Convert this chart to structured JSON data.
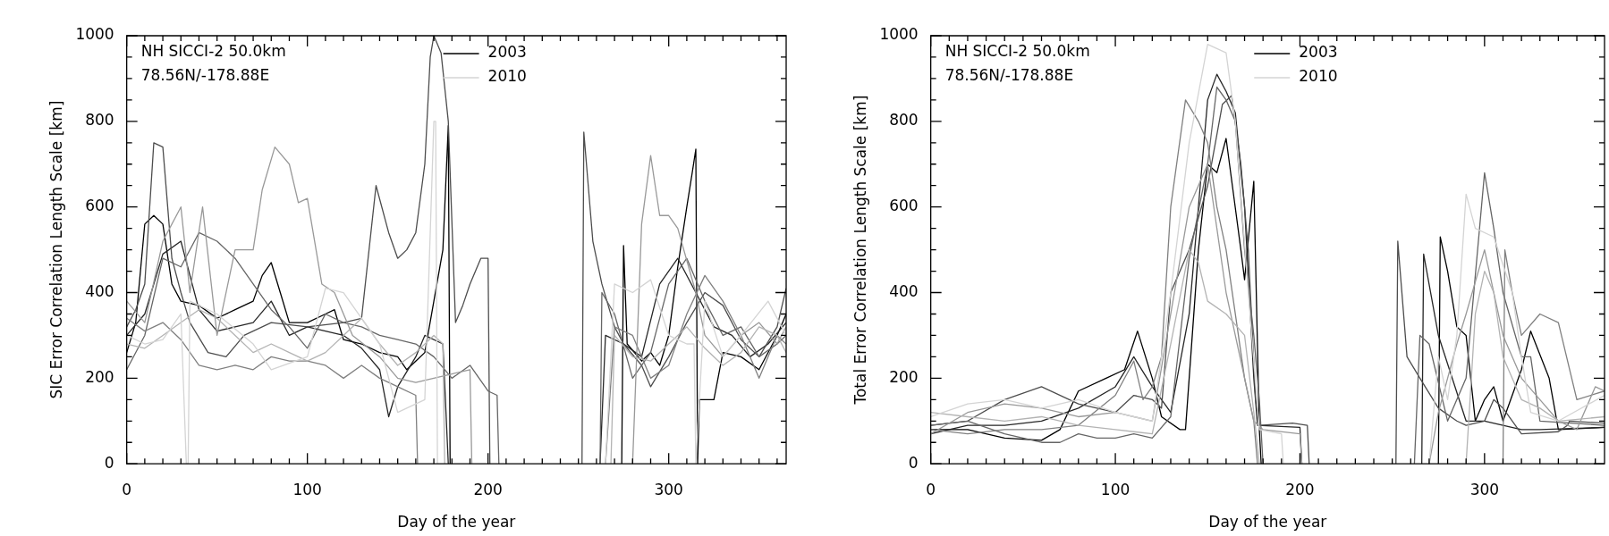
{
  "chart_data": [
    {
      "type": "line",
      "xlabel": "Day of the year",
      "ylabel": "SIC Error Correlation Length Scale [km]",
      "annotations": [
        "NH SICCI-2 50.0km",
        "78.56N/-178.88E"
      ],
      "legend": "top",
      "marker": "none",
      "line_style": "solid",
      "xlim": [
        0,
        365
      ],
      "ylim": [
        0,
        1000
      ],
      "xticks": [
        0,
        {
          "value": 10,
          "label": null
        },
        {
          "value": 20,
          "label": null
        },
        {
          "value": 30,
          "label": null
        },
        {
          "value": 40,
          "label": null
        },
        {
          "value": 50,
          "label": null
        },
        {
          "value": 60,
          "label": null
        },
        {
          "value": 70,
          "label": null
        },
        {
          "value": 80,
          "label": null
        },
        {
          "value": 90,
          "label": null
        },
        100,
        {
          "value": 110,
          "label": null
        },
        {
          "value": 120,
          "label": null
        },
        {
          "value": 130,
          "label": null
        },
        {
          "value": 140,
          "label": null
        },
        {
          "value": 150,
          "label": null
        },
        {
          "value": 160,
          "label": null
        },
        {
          "value": 170,
          "label": null
        },
        {
          "value": 180,
          "label": null
        },
        {
          "value": 190,
          "label": null
        },
        200,
        {
          "value": 210,
          "label": null
        },
        {
          "value": 220,
          "label": null
        },
        {
          "value": 230,
          "label": null
        },
        {
          "value": 240,
          "label": null
        },
        {
          "value": 250,
          "label": null
        },
        {
          "value": 260,
          "label": null
        },
        {
          "value": 270,
          "label": null
        },
        {
          "value": 280,
          "label": null
        },
        {
          "value": 290,
          "label": null
        },
        300,
        {
          "value": 310,
          "label": null
        },
        {
          "value": 320,
          "label": null
        },
        {
          "value": 330,
          "label": null
        },
        {
          "value": 340,
          "label": null
        },
        {
          "value": 350,
          "label": null
        },
        {
          "value": 360,
          "label": null
        }
      ],
      "yticks": [
        0,
        {
          "value": 50,
          "label": null
        },
        {
          "value": 100,
          "label": null
        },
        {
          "value": 150,
          "label": null
        },
        200,
        {
          "value": 250,
          "label": null
        },
        {
          "value": 300,
          "label": null
        },
        {
          "value": 350,
          "label": null
        },
        400,
        {
          "value": 450,
          "label": null
        },
        {
          "value": 500,
          "label": null
        },
        {
          "value": 550,
          "label": null
        },
        600,
        {
          "value": 650,
          "label": null
        },
        {
          "value": 700,
          "label": null
        },
        {
          "value": 750,
          "label": null
        },
        800,
        {
          "value": 850,
          "label": null
        },
        {
          "value": 900,
          "label": null
        },
        {
          "value": 950,
          "label": null
        },
        1000
      ],
      "series": [
        {
          "name": "2003",
          "color": "#000000",
          "x": [
            0,
            5,
            10,
            15,
            20,
            25,
            30,
            40,
            50,
            60,
            70,
            75,
            80,
            85,
            90,
            100,
            110,
            115,
            120,
            130,
            140,
            150,
            155,
            160,
            165,
            170,
            175,
            178,
            179,
            230,
            274,
            275,
            277,
            285,
            290,
            295,
            300,
            305,
            310,
            313,
            315,
            316,
            317,
            325,
            330,
            340,
            350,
            360,
            365
          ],
          "values": [
            260,
            330,
            560,
            580,
            560,
            420,
            380,
            370,
            340,
            360,
            380,
            440,
            470,
            400,
            330,
            330,
            350,
            360,
            290,
            280,
            260,
            250,
            220,
            240,
            260,
            380,
            500,
            790,
            0,
            null,
            0,
            510,
            280,
            240,
            260,
            230,
            300,
            460,
            600,
            680,
            735,
            0,
            150,
            150,
            260,
            250,
            220,
            300,
            350
          ]
        },
        {
          "color": "#262626",
          "x": [
            0,
            10,
            20,
            30,
            40,
            50,
            60,
            70,
            80,
            90,
            100,
            110,
            120,
            130,
            140,
            145,
            150,
            160,
            165,
            175,
            178,
            230,
            262,
            265,
            275,
            285,
            295,
            305,
            315,
            325,
            335,
            345,
            355,
            365
          ],
          "values": [
            300,
            350,
            490,
            520,
            360,
            310,
            320,
            330,
            380,
            300,
            320,
            310,
            300,
            270,
            220,
            110,
            180,
            250,
            300,
            280,
            0,
            null,
            0,
            300,
            280,
            250,
            420,
            480,
            400,
            320,
            300,
            250,
            280,
            330
          ]
        },
        {
          "color": "#4d4d4d",
          "x": [
            0,
            5,
            10,
            15,
            20,
            25,
            30,
            35,
            45,
            55,
            65,
            80,
            100,
            120,
            130,
            138,
            145,
            150,
            155,
            160,
            165,
            168,
            170,
            174,
            178,
            182,
            186,
            190,
            196,
            200,
            201,
            230,
            252,
            253,
            258,
            263,
            270,
            275,
            285,
            290,
            300,
            310,
            320,
            330,
            340,
            350,
            360,
            365
          ],
          "values": [
            320,
            360,
            420,
            750,
            740,
            480,
            400,
            330,
            260,
            250,
            300,
            330,
            320,
            330,
            340,
            650,
            540,
            480,
            500,
            540,
            700,
            950,
            1000,
            960,
            800,
            330,
            370,
            420,
            480,
            480,
            0,
            null,
            0,
            775,
            520,
            420,
            320,
            280,
            230,
            180,
            250,
            330,
            400,
            370,
            290,
            250,
            320,
            410
          ]
        },
        {
          "color": "#666666",
          "x": [
            0,
            10,
            20,
            30,
            40,
            50,
            60,
            70,
            80,
            90,
            100,
            110,
            120,
            130,
            140,
            150,
            160,
            170,
            180,
            190,
            200,
            205,
            206,
            230,
            262,
            263,
            270,
            280,
            290,
            300,
            310,
            320,
            330,
            340,
            350,
            360,
            365
          ],
          "values": [
            220,
            300,
            480,
            460,
            540,
            520,
            480,
            420,
            360,
            320,
            270,
            350,
            330,
            320,
            300,
            290,
            280,
            250,
            200,
            230,
            170,
            160,
            0,
            null,
            0,
            400,
            350,
            200,
            260,
            420,
            480,
            380,
            300,
            320,
            250,
            280,
            300
          ]
        },
        {
          "color": "#808080",
          "x": [
            0,
            10,
            20,
            30,
            40,
            50,
            60,
            70,
            80,
            90,
            100,
            110,
            120,
            130,
            140,
            150,
            160,
            161,
            230,
            265,
            270,
            280,
            290,
            300,
            310,
            320,
            330,
            340,
            350,
            360,
            365
          ],
          "values": [
            340,
            310,
            330,
            290,
            230,
            220,
            230,
            220,
            250,
            240,
            240,
            230,
            200,
            230,
            200,
            180,
            160,
            0,
            null,
            0,
            320,
            300,
            200,
            230,
            350,
            440,
            380,
            300,
            200,
            300,
            280
          ]
        },
        {
          "color": "#999999",
          "x": [
            0,
            10,
            20,
            30,
            35,
            42,
            50,
            60,
            70,
            75,
            82,
            90,
            95,
            100,
            108,
            115,
            125,
            140,
            150,
            160,
            170,
            180,
            190,
            191,
            230,
            280,
            285,
            290,
            295,
            300,
            305,
            315,
            320,
            330,
            340,
            350,
            360,
            365
          ],
          "values": [
            380,
            330,
            520,
            600,
            400,
            600,
            300,
            500,
            500,
            640,
            740,
            700,
            610,
            620,
            420,
            400,
            300,
            250,
            200,
            190,
            200,
            210,
            220,
            0,
            null,
            0,
            560,
            720,
            580,
            580,
            550,
            400,
            300,
            250,
            300,
            330,
            280,
            320
          ]
        },
        {
          "color": "#b3b3b3",
          "x": [
            0,
            10,
            20,
            30,
            40,
            50,
            60,
            70,
            80,
            90,
            100,
            110,
            120,
            130,
            140,
            150,
            160,
            170,
            175,
            176,
            230,
            268,
            270,
            280,
            290,
            300,
            310,
            320,
            330,
            340,
            350,
            360,
            365
          ],
          "values": [
            280,
            270,
            300,
            330,
            360,
            340,
            300,
            260,
            280,
            260,
            240,
            260,
            300,
            340,
            280,
            230,
            260,
            300,
            280,
            0,
            null,
            0,
            300,
            250,
            240,
            280,
            320,
            270,
            230,
            260,
            320,
            300,
            260
          ]
        },
        {
          "name": "2010",
          "color": "#d4d4d4",
          "x": [
            0,
            10,
            20,
            30,
            33,
            34,
            35,
            50,
            70,
            80,
            100,
            110,
            120,
            140,
            150,
            165,
            170,
            171,
            172,
            230,
            265,
            270,
            280,
            290,
            300,
            310,
            314,
            315,
            320,
            330,
            340,
            355,
            365
          ],
          "values": [
            300,
            280,
            290,
            350,
            0,
            0,
            380,
            350,
            280,
            220,
            250,
            410,
            400,
            280,
            120,
            150,
            800,
            800,
            0,
            null,
            0,
            420,
            400,
            430,
            300,
            280,
            280,
            0,
            380,
            250,
            300,
            380,
            300
          ]
        }
      ]
    },
    {
      "type": "line",
      "xlabel": "Day of the year",
      "ylabel": "Total Error Correlation Length Scale [km]",
      "annotations": [
        "NH SICCI-2 50.0km",
        "78.56N/-178.88E"
      ],
      "legend": "top",
      "marker": "none",
      "line_style": "solid",
      "xlim": [
        0,
        365
      ],
      "ylim": [
        0,
        1000
      ],
      "xticks": [
        0,
        {
          "value": 10,
          "label": null
        },
        {
          "value": 20,
          "label": null
        },
        {
          "value": 30,
          "label": null
        },
        {
          "value": 40,
          "label": null
        },
        {
          "value": 50,
          "label": null
        },
        {
          "value": 60,
          "label": null
        },
        {
          "value": 70,
          "label": null
        },
        {
          "value": 80,
          "label": null
        },
        {
          "value": 90,
          "label": null
        },
        100,
        {
          "value": 110,
          "label": null
        },
        {
          "value": 120,
          "label": null
        },
        {
          "value": 130,
          "label": null
        },
        {
          "value": 140,
          "label": null
        },
        {
          "value": 150,
          "label": null
        },
        {
          "value": 160,
          "label": null
        },
        {
          "value": 170,
          "label": null
        },
        {
          "value": 180,
          "label": null
        },
        {
          "value": 190,
          "label": null
        },
        200,
        {
          "value": 210,
          "label": null
        },
        {
          "value": 220,
          "label": null
        },
        {
          "value": 230,
          "label": null
        },
        {
          "value": 240,
          "label": null
        },
        {
          "value": 250,
          "label": null
        },
        {
          "value": 260,
          "label": null
        },
        {
          "value": 270,
          "label": null
        },
        {
          "value": 280,
          "label": null
        },
        {
          "value": 290,
          "label": null
        },
        300,
        {
          "value": 310,
          "label": null
        },
        {
          "value": 320,
          "label": null
        },
        {
          "value": 330,
          "label": null
        },
        {
          "value": 340,
          "label": null
        },
        {
          "value": 350,
          "label": null
        },
        {
          "value": 360,
          "label": null
        }
      ],
      "yticks": [
        0,
        {
          "value": 50,
          "label": null
        },
        {
          "value": 100,
          "label": null
        },
        {
          "value": 150,
          "label": null
        },
        200,
        {
          "value": 250,
          "label": null
        },
        {
          "value": 300,
          "label": null
        },
        {
          "value": 350,
          "label": null
        },
        400,
        {
          "value": 450,
          "label": null
        },
        {
          "value": 500,
          "label": null
        },
        {
          "value": 550,
          "label": null
        },
        600,
        {
          "value": 650,
          "label": null
        },
        {
          "value": 700,
          "label": null
        },
        {
          "value": 750,
          "label": null
        },
        800,
        {
          "value": 850,
          "label": null
        },
        {
          "value": 900,
          "label": null
        },
        {
          "value": 950,
          "label": null
        },
        1000
      ],
      "series": [
        {
          "name": "2003",
          "color": "#000000",
          "x": [
            0,
            20,
            40,
            60,
            70,
            80,
            95,
            105,
            112,
            120,
            125,
            135,
            138,
            145,
            150,
            155,
            160,
            168,
            170,
            175,
            178,
            179,
            230,
            275,
            276,
            280,
            285,
            290,
            295,
            300,
            305,
            310,
            320,
            325,
            335,
            340,
            365
          ],
          "values": [
            80,
            80,
            60,
            55,
            80,
            170,
            200,
            220,
            310,
            200,
            110,
            80,
            80,
            500,
            700,
            680,
            760,
            500,
            430,
            660,
            80,
            0,
            null,
            0,
            530,
            450,
            320,
            300,
            100,
            150,
            180,
            100,
            220,
            310,
            200,
            80,
            85
          ]
        },
        {
          "color": "#262626",
          "x": [
            0,
            20,
            40,
            60,
            80,
            100,
            110,
            120,
            130,
            140,
            150,
            155,
            160,
            165,
            170,
            175,
            177,
            200,
            201,
            230,
            266,
            267,
            275,
            290,
            300,
            310,
            320,
            330,
            365
          ],
          "values": [
            70,
            90,
            90,
            100,
            130,
            180,
            250,
            180,
            120,
            350,
            850,
            910,
            870,
            820,
            600,
            200,
            90,
            85,
            0,
            null,
            0,
            490,
            300,
            100,
            100,
            90,
            80,
            80,
            85
          ]
        },
        {
          "color": "#4d4d4d",
          "x": [
            0,
            20,
            40,
            60,
            80,
            100,
            110,
            120,
            125,
            130,
            140,
            150,
            158,
            163,
            168,
            172,
            176,
            178,
            196,
            204,
            205,
            230,
            252,
            253,
            258,
            265,
            275,
            285,
            290,
            300,
            305,
            310,
            320,
            340,
            345,
            346,
            365
          ],
          "values": [
            90,
            100,
            150,
            180,
            140,
            120,
            160,
            150,
            130,
            400,
            500,
            650,
            840,
            860,
            700,
            500,
            150,
            90,
            95,
            90,
            0,
            null,
            0,
            520,
            250,
            200,
            130,
            100,
            90,
            100,
            150,
            130,
            70,
            75,
            90,
            100,
            95
          ]
        },
        {
          "color": "#666666",
          "x": [
            0,
            20,
            40,
            60,
            70,
            80,
            90,
            100,
            110,
            120,
            130,
            140,
            150,
            155,
            160,
            165,
            170,
            175,
            178,
            180,
            230,
            262,
            265,
            270,
            280,
            290,
            300,
            305,
            310,
            320,
            325,
            330,
            365
          ],
          "values": [
            90,
            100,
            70,
            50,
            50,
            70,
            60,
            60,
            70,
            60,
            110,
            480,
            700,
            880,
            850,
            800,
            500,
            300,
            150,
            0,
            null,
            0,
            300,
            280,
            100,
            200,
            680,
            550,
            400,
            250,
            250,
            100,
            90
          ]
        },
        {
          "color": "#808080",
          "x": [
            0,
            20,
            40,
            60,
            80,
            100,
            110,
            115,
            120,
            125,
            130,
            138,
            145,
            150,
            155,
            160,
            170,
            175,
            177,
            230,
            310,
            311,
            315,
            320,
            330,
            340,
            350,
            365
          ],
          "values": [
            80,
            70,
            80,
            80,
            90,
            160,
            240,
            150,
            180,
            250,
            600,
            850,
            800,
            750,
            600,
            500,
            200,
            100,
            0,
            null,
            0,
            500,
            400,
            300,
            350,
            330,
            150,
            170
          ]
        },
        {
          "color": "#999999",
          "x": [
            0,
            20,
            40,
            60,
            80,
            100,
            120,
            130,
            140,
            150,
            160,
            170,
            175,
            180,
            200,
            201,
            230,
            270,
            275,
            280,
            285,
            290,
            300,
            310,
            320,
            330,
            340,
            350,
            360,
            365
          ],
          "values": [
            70,
            120,
            140,
            130,
            110,
            120,
            100,
            350,
            600,
            700,
            400,
            200,
            100,
            80,
            70,
            0,
            null,
            0,
            120,
            200,
            280,
            350,
            500,
            300,
            200,
            150,
            100,
            80,
            180,
            170
          ]
        },
        {
          "color": "#b3b3b3",
          "x": [
            0,
            20,
            40,
            60,
            80,
            100,
            120,
            130,
            140,
            145,
            150,
            160,
            170,
            175,
            178,
            230,
            290,
            295,
            300,
            305,
            310,
            320,
            330,
            340,
            365
          ],
          "values": [
            120,
            110,
            100,
            110,
            90,
            80,
            70,
            280,
            500,
            470,
            380,
            350,
            300,
            120,
            0,
            null,
            0,
            350,
            450,
            400,
            250,
            150,
            130,
            100,
            110
          ]
        },
        {
          "name": "2010",
          "color": "#d4d4d4",
          "x": [
            0,
            20,
            40,
            60,
            80,
            100,
            120,
            130,
            140,
            150,
            160,
            165,
            172,
            178,
            190,
            191,
            230,
            270,
            275,
            280,
            285,
            290,
            295,
            305,
            315,
            320,
            325,
            340,
            365
          ],
          "values": [
            110,
            140,
            150,
            130,
            150,
            120,
            100,
            400,
            750,
            980,
            960,
            800,
            400,
            80,
            70,
            0,
            null,
            0,
            250,
            150,
            300,
            630,
            550,
            530,
            400,
            250,
            120,
            100,
            160
          ]
        }
      ]
    }
  ]
}
